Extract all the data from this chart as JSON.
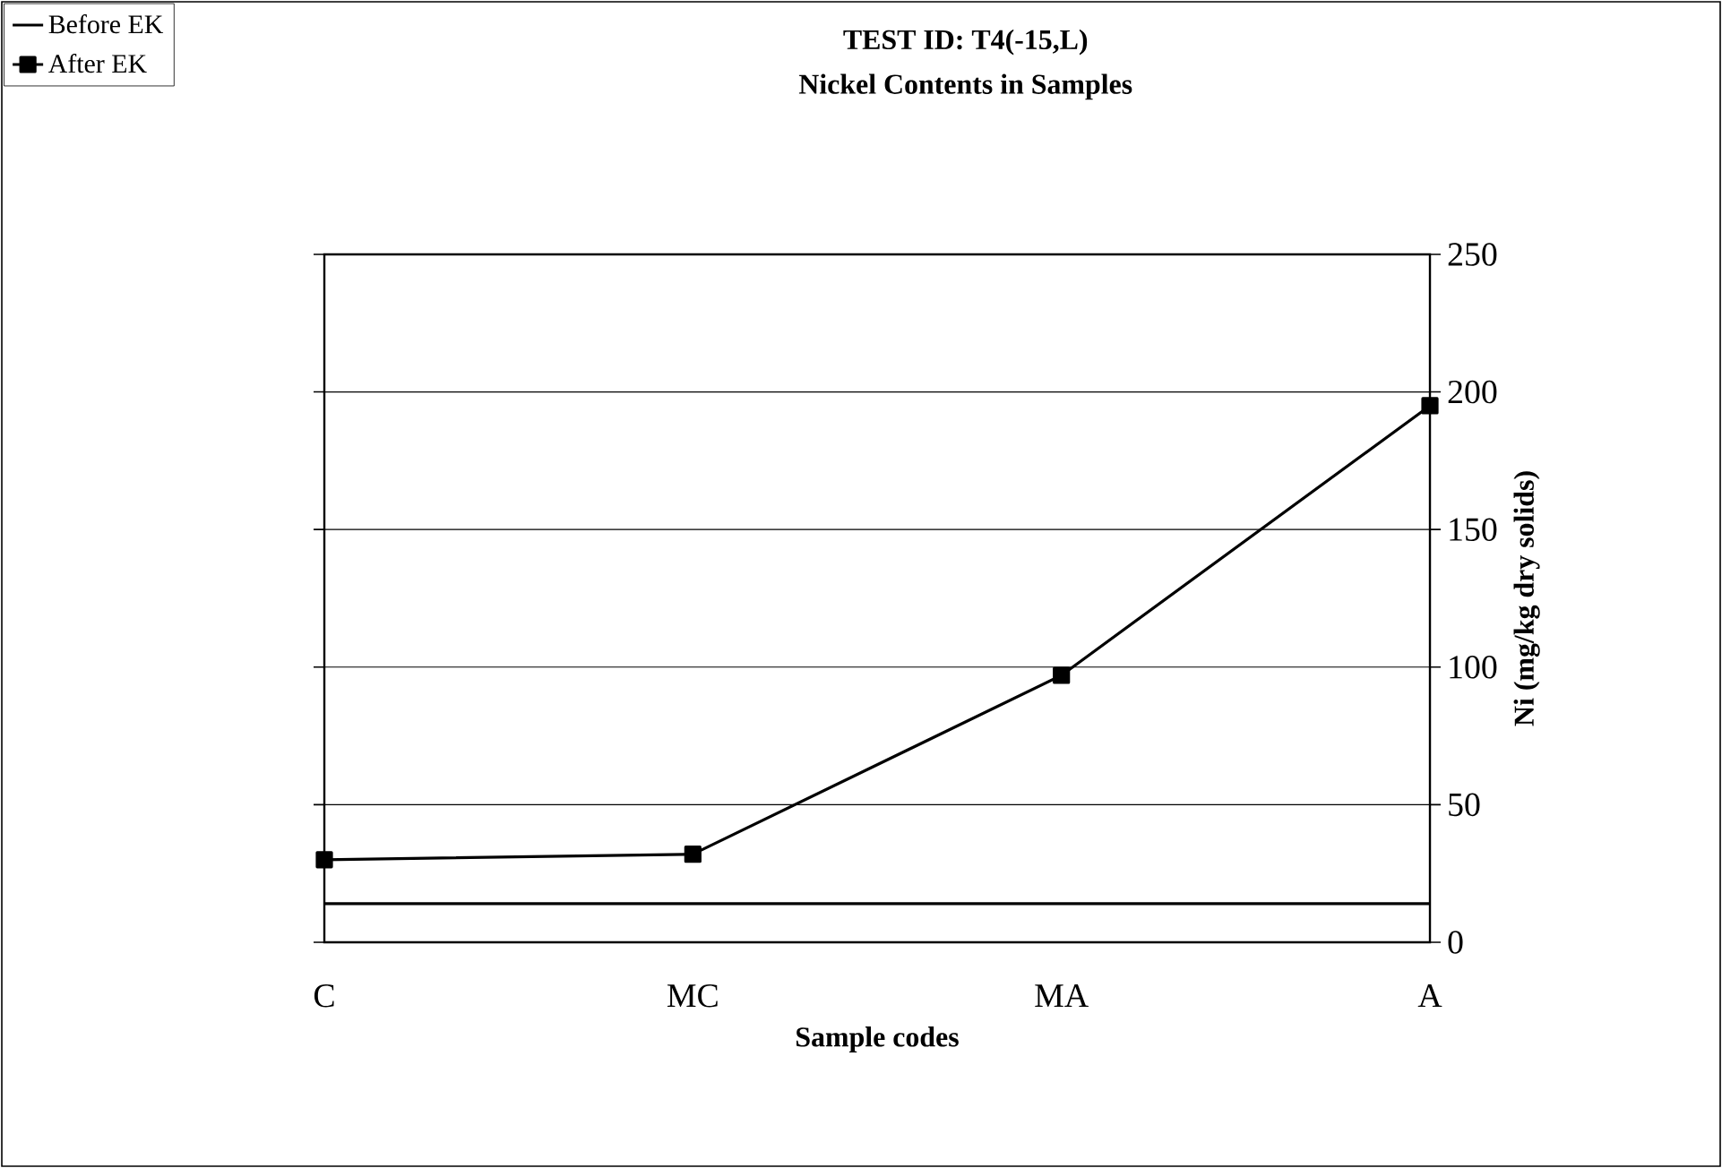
{
  "chart_data": {
    "type": "line",
    "title": "TEST ID: T4(-15,L)",
    "subtitle": "Nickel Contents in Samples",
    "xlabel": "Sample codes",
    "ylabel": "Ni (mg/kg dry solids)",
    "categories": [
      "C",
      "MC",
      "MA",
      "A"
    ],
    "series": [
      {
        "name": "Before EK",
        "color": "#000000",
        "values": [
          14,
          14,
          14,
          14
        ],
        "marker": "none"
      },
      {
        "name": "After EK",
        "color": "#000000",
        "values": [
          30,
          32,
          97,
          195
        ],
        "marker": "square"
      }
    ],
    "ylim": [
      0,
      250
    ],
    "yticks": [
      0,
      50,
      100,
      150,
      200,
      250
    ],
    "grid": "y",
    "legend": "top left",
    "line_style": "solid"
  }
}
